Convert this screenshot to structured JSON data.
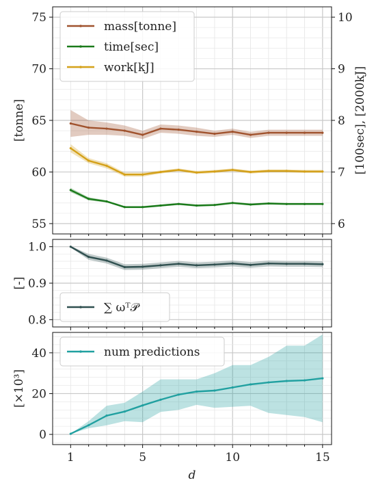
{
  "chart_data": [
    {
      "type": "line",
      "ylabel": "[tonne]",
      "ylabel_right": "[100sec], [2000kJ]",
      "ylim": [
        54,
        76
      ],
      "ylim_right": [
        5.8,
        10.2
      ],
      "yticks": [
        55,
        60,
        65,
        70,
        75
      ],
      "yticks_right": [
        6,
        7,
        8,
        9,
        10
      ],
      "x": [
        1,
        2,
        3,
        4,
        5,
        6,
        7,
        8,
        9,
        10,
        11,
        12,
        13,
        14,
        15
      ],
      "legend_position": "top-left",
      "grid": true,
      "series": [
        {
          "name": "mass[tonne]",
          "axis": "left",
          "color": "#a0522d",
          "values": [
            64.7,
            64.3,
            64.2,
            64.0,
            63.6,
            64.2,
            64.1,
            63.9,
            63.7,
            63.9,
            63.6,
            63.8,
            63.8,
            63.8,
            63.8
          ],
          "band": [
            1.3,
            0.7,
            0.6,
            0.5,
            0.4,
            0.4,
            0.4,
            0.4,
            0.3,
            0.3,
            0.3,
            0.3,
            0.3,
            0.3,
            0.3
          ]
        },
        {
          "name": "time[sec]",
          "axis": "right",
          "color": "#1a7a1a",
          "values": [
            6.65,
            6.48,
            6.43,
            6.32,
            6.32,
            6.35,
            6.38,
            6.35,
            6.36,
            6.4,
            6.37,
            6.39,
            6.38,
            6.38,
            6.38
          ],
          "band": [
            0.04,
            0.03,
            0.02,
            0.02,
            0.02,
            0.02,
            0.02,
            0.02,
            0.02,
            0.02,
            0.02,
            0.02,
            0.02,
            0.02,
            0.02
          ]
        },
        {
          "name": "work[kJ]",
          "axis": "right",
          "color": "#d4a017",
          "values": [
            7.46,
            7.22,
            7.12,
            6.95,
            6.95,
            7.0,
            7.04,
            6.99,
            7.01,
            7.04,
            7.0,
            7.02,
            7.02,
            7.01,
            7.01
          ],
          "band": [
            0.08,
            0.05,
            0.05,
            0.04,
            0.04,
            0.03,
            0.03,
            0.03,
            0.03,
            0.03,
            0.03,
            0.03,
            0.03,
            0.03,
            0.03
          ]
        }
      ]
    },
    {
      "type": "line",
      "ylabel": "[-]",
      "ylim": [
        0.78,
        1.02
      ],
      "yticks": [
        0.8,
        0.9,
        1.0
      ],
      "ytick_labels": [
        "0.8",
        "0.9",
        "1.0"
      ],
      "x": [
        1,
        2,
        3,
        4,
        5,
        6,
        7,
        8,
        9,
        10,
        11,
        12,
        13,
        14,
        15
      ],
      "legend_position": "bottom-left",
      "grid": true,
      "series": [
        {
          "name": "∑ ωᵀ𝒫",
          "axis": "left",
          "color": "#2f4f4f",
          "values": [
            1.0,
            0.972,
            0.962,
            0.944,
            0.945,
            0.949,
            0.953,
            0.949,
            0.951,
            0.954,
            0.95,
            0.954,
            0.953,
            0.953,
            0.952
          ],
          "band": [
            0.002,
            0.008,
            0.008,
            0.008,
            0.008,
            0.008,
            0.008,
            0.008,
            0.008,
            0.008,
            0.008,
            0.008,
            0.008,
            0.008,
            0.008
          ]
        }
      ]
    },
    {
      "type": "line",
      "ylabel": "[×10³]",
      "ylim": [
        -5,
        50
      ],
      "yticks": [
        0,
        20,
        40
      ],
      "x": [
        1,
        2,
        3,
        4,
        5,
        6,
        7,
        8,
        9,
        10,
        11,
        12,
        13,
        14,
        15
      ],
      "xlabel": "d",
      "xticks": [
        1,
        5,
        10,
        15
      ],
      "xlim": [
        0,
        15.5
      ],
      "legend_position": "top-left",
      "grid": true,
      "series": [
        {
          "name": "num predictions",
          "axis": "left",
          "color": "#20a0a0",
          "values": [
            0.3,
            4.5,
            9.2,
            11.2,
            14.2,
            17.0,
            19.5,
            21.0,
            21.5,
            23.0,
            24.5,
            25.5,
            26.2,
            26.5,
            27.5
          ],
          "lower": [
            0.3,
            3.0,
            4.5,
            6.5,
            6.0,
            11.0,
            12.0,
            14.5,
            13.0,
            13.5,
            14.0,
            10.5,
            9.5,
            8.5,
            6.0
          ],
          "upper": [
            0.3,
            6.5,
            14.0,
            15.5,
            21.0,
            27.0,
            27.0,
            27.0,
            30.0,
            34.0,
            34.0,
            38.0,
            43.5,
            43.5,
            49.0
          ]
        }
      ]
    }
  ]
}
